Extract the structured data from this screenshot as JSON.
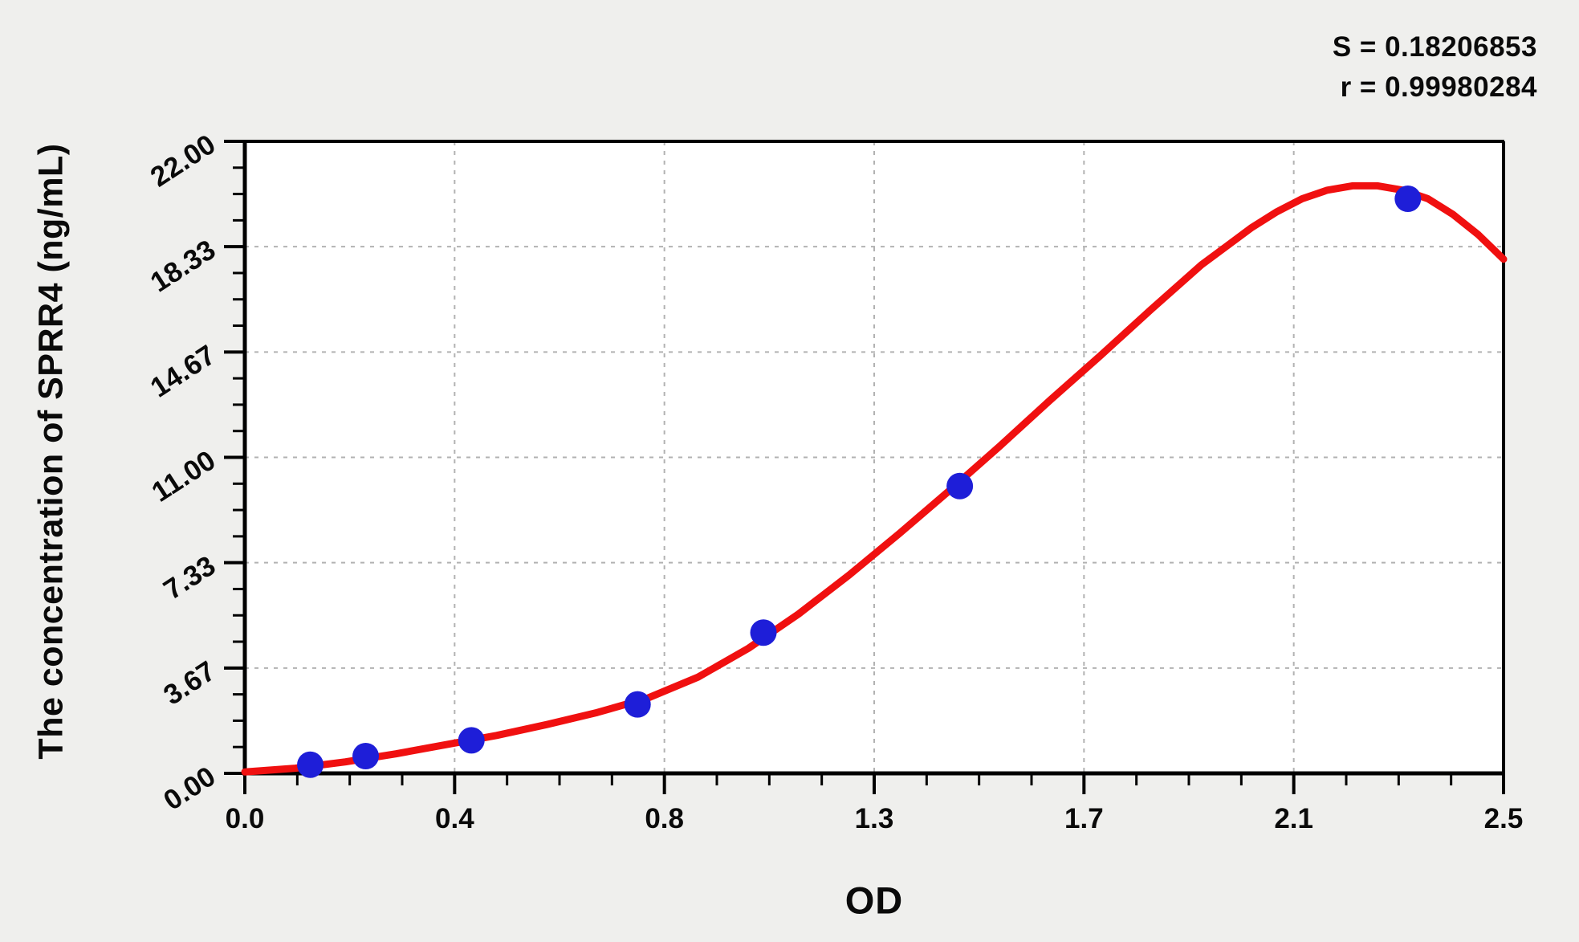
{
  "stats": {
    "s_line": "S = 0.18206853",
    "r_line": "r = 0.99980284"
  },
  "colors": {
    "page_background": "#efefed",
    "plot_background": "#ffffff",
    "curve": "#f01010",
    "points": "#1e1ed8",
    "grid": "#b2b2b2",
    "axis": "#000000"
  },
  "chart_data": {
    "type": "scatter",
    "title": "",
    "xlabel": "OD",
    "ylabel": "The concentration of SPRR4 (ng/mL)",
    "xlim": [
      0,
      2.5
    ],
    "ylim": [
      0,
      22
    ],
    "x_tick_labels": [
      "0.0",
      "0.4",
      "0.8",
      "1.3",
      "1.7",
      "2.1",
      "2.5"
    ],
    "y_tick_labels": [
      "0.00",
      "3.67",
      "7.33",
      "11.00",
      "14.67",
      "18.33",
      "22.00"
    ],
    "minor_ticks_between_majors": 3,
    "grid": "dashed at major ticks",
    "legend_position": "none",
    "stats": {
      "S": "0.18206853",
      "r": "0.99980284"
    },
    "series": [
      {
        "name": "standard-points",
        "type": "scatter",
        "color": "#1e1ed8",
        "points": [
          [
            0.13,
            0.3
          ],
          [
            0.24,
            0.6
          ],
          [
            0.45,
            1.15
          ],
          [
            0.78,
            2.4
          ],
          [
            1.03,
            4.9
          ],
          [
            1.42,
            10.0
          ],
          [
            2.31,
            20.0
          ]
        ]
      },
      {
        "name": "fitted-curve",
        "type": "line",
        "color": "#f01010",
        "points": [
          [
            0.0,
            0.05
          ],
          [
            0.1,
            0.18
          ],
          [
            0.2,
            0.4
          ],
          [
            0.3,
            0.68
          ],
          [
            0.4,
            1.0
          ],
          [
            0.5,
            1.32
          ],
          [
            0.6,
            1.7
          ],
          [
            0.7,
            2.12
          ],
          [
            0.8,
            2.62
          ],
          [
            0.9,
            3.35
          ],
          [
            1.0,
            4.35
          ],
          [
            1.1,
            5.55
          ],
          [
            1.2,
            6.9
          ],
          [
            1.3,
            8.35
          ],
          [
            1.4,
            9.85
          ],
          [
            1.5,
            11.4
          ],
          [
            1.6,
            13.0
          ],
          [
            1.7,
            14.55
          ],
          [
            1.8,
            16.15
          ],
          [
            1.9,
            17.7
          ],
          [
            2.0,
            19.0
          ],
          [
            2.05,
            19.55
          ],
          [
            2.1,
            20.0
          ],
          [
            2.15,
            20.3
          ],
          [
            2.2,
            20.45
          ],
          [
            2.25,
            20.45
          ],
          [
            2.3,
            20.3
          ],
          [
            2.35,
            20.0
          ],
          [
            2.4,
            19.45
          ],
          [
            2.45,
            18.75
          ],
          [
            2.5,
            17.9
          ]
        ]
      }
    ]
  }
}
